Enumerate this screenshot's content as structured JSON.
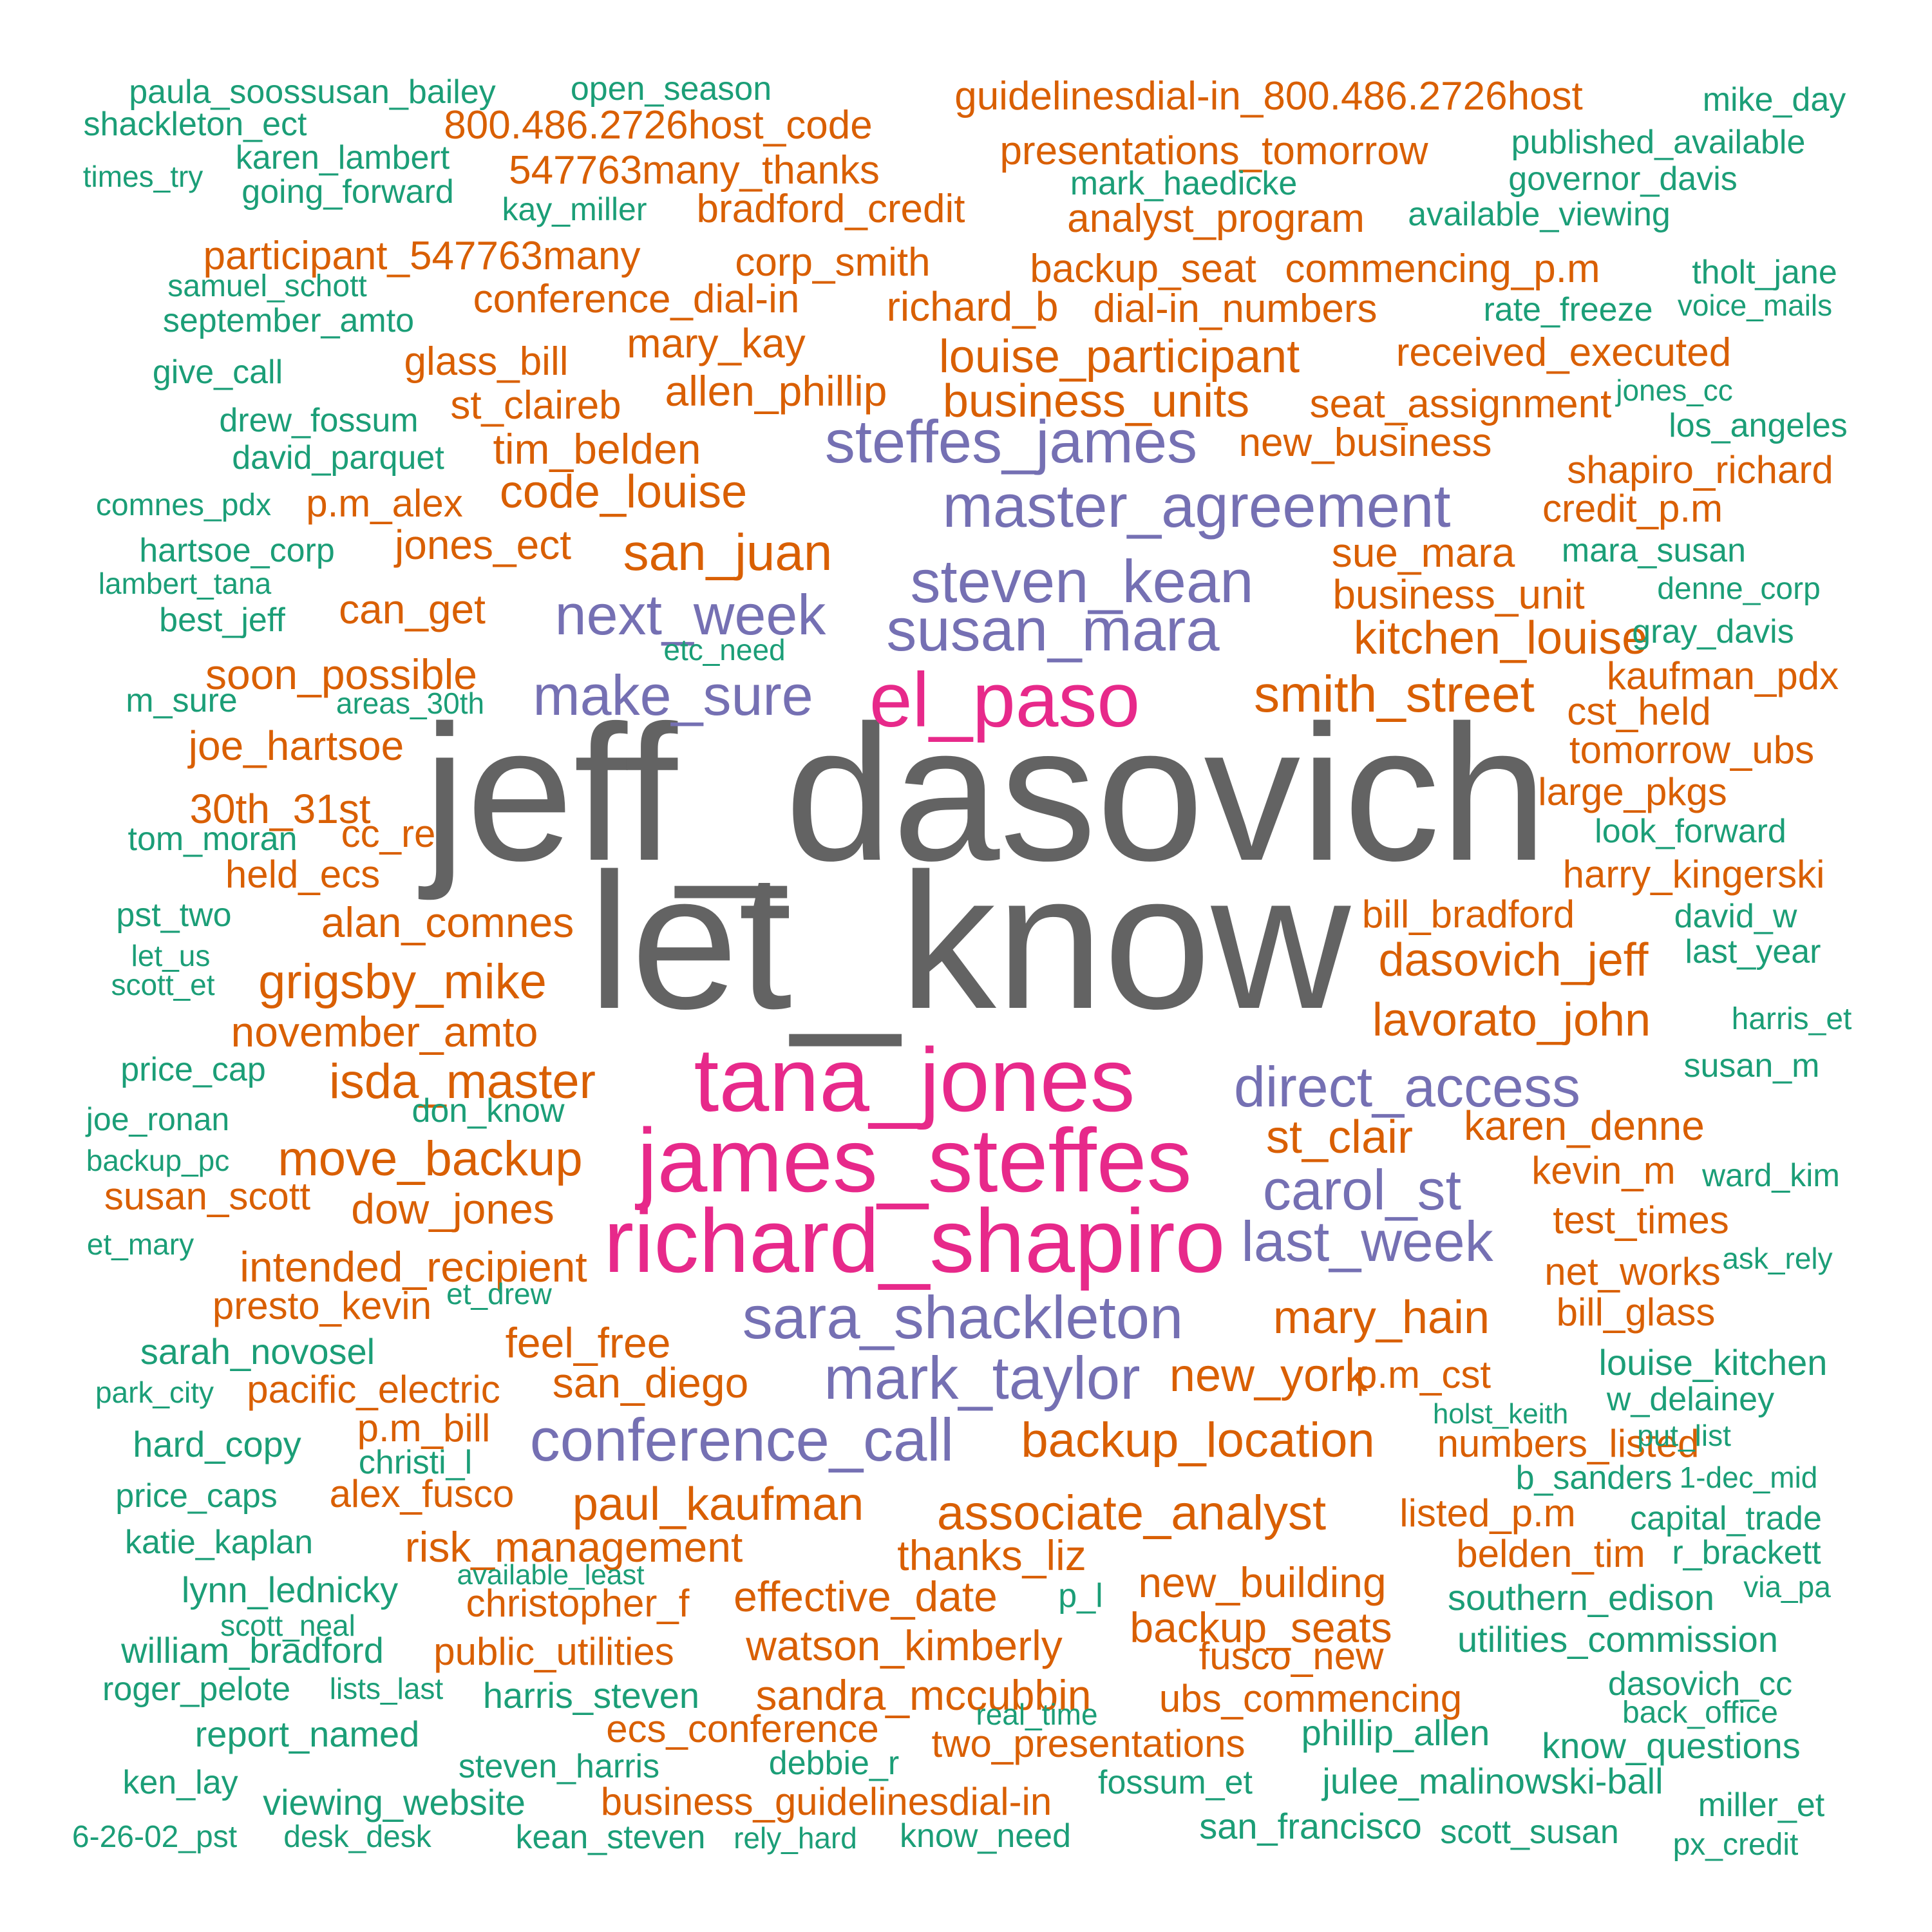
{
  "palette": {
    "gray": "#636363",
    "pink": "#E7298A",
    "purple": "#7570B3",
    "orange": "#D95F02",
    "green": "#1B9E77"
  },
  "words": [
    {
      "text": "jeff_dasovich",
      "size": 7,
      "color": "gray"
    },
    {
      "text": "let_know",
      "size": 7,
      "color": "gray"
    },
    {
      "text": "tana_jones",
      "size": 5,
      "color": "pink"
    },
    {
      "text": "james_steffes",
      "size": 5,
      "color": "pink"
    },
    {
      "text": "richard_shapiro",
      "size": 5,
      "color": "pink"
    },
    {
      "text": "el_paso",
      "size": 5,
      "color": "pink"
    },
    {
      "text": "master_agreement",
      "size": 4,
      "color": "purple"
    },
    {
      "text": "steven_kean",
      "size": 4,
      "color": "purple"
    },
    {
      "text": "susan_mara",
      "size": 4,
      "color": "purple"
    },
    {
      "text": "steffes_james",
      "size": 4,
      "color": "purple"
    },
    {
      "text": "next_week",
      "size": 4,
      "color": "purple"
    },
    {
      "text": "make_sure",
      "size": 4,
      "color": "purple"
    },
    {
      "text": "direct_access",
      "size": 4,
      "color": "purple"
    },
    {
      "text": "carol_st",
      "size": 4,
      "color": "purple"
    },
    {
      "text": "last_week",
      "size": 4,
      "color": "purple"
    },
    {
      "text": "sara_shackleton",
      "size": 4,
      "color": "purple"
    },
    {
      "text": "mark_taylor",
      "size": 4,
      "color": "purple"
    },
    {
      "text": "conference_call",
      "size": 4,
      "color": "purple"
    },
    {
      "text": "san_juan",
      "size": 3,
      "color": "orange"
    },
    {
      "text": "smith_street",
      "size": 3,
      "color": "orange"
    },
    {
      "text": "grigsby_mike",
      "size": 3,
      "color": "orange"
    },
    {
      "text": "isda_master",
      "size": 3,
      "color": "orange"
    },
    {
      "text": "move_backup",
      "size": 3,
      "color": "orange"
    },
    {
      "text": "backup_location",
      "size": 3,
      "color": "orange"
    },
    {
      "text": "associate_analyst",
      "size": 3,
      "color": "orange"
    },
    {
      "text": "paul_kaufman",
      "size": 3,
      "color": "orange"
    },
    {
      "text": "mary_hain",
      "size": 3,
      "color": "orange"
    },
    {
      "text": "new_york",
      "size": 3,
      "color": "orange"
    },
    {
      "text": "st_clair",
      "size": 3,
      "color": "orange"
    },
    {
      "text": "dasovich_jeff",
      "size": 3,
      "color": "orange"
    },
    {
      "text": "lavorato_john",
      "size": 3,
      "color": "orange"
    },
    {
      "text": "kitchen_louise",
      "size": 3,
      "color": "orange"
    },
    {
      "text": "louise_participant",
      "size": 3,
      "color": "orange"
    },
    {
      "text": "business_units",
      "size": 3,
      "color": "orange"
    },
    {
      "text": "code_louise",
      "size": 3,
      "color": "orange"
    },
    {
      "text": "november_amto",
      "size": 3,
      "color": "orange"
    },
    {
      "text": "dow_jones",
      "size": 3,
      "color": "orange"
    },
    {
      "text": "intended_recipient",
      "size": 3,
      "color": "orange"
    },
    {
      "text": "feel_free",
      "size": 3,
      "color": "orange"
    },
    {
      "text": "san_diego",
      "size": 3,
      "color": "orange"
    },
    {
      "text": "risk_management",
      "size": 3,
      "color": "orange"
    },
    {
      "text": "thanks_liz",
      "size": 3,
      "color": "orange"
    },
    {
      "text": "effective_date",
      "size": 3,
      "color": "orange"
    },
    {
      "text": "watson_kimberly",
      "size": 3,
      "color": "orange"
    },
    {
      "text": "sandra_mccubbin",
      "size": 3,
      "color": "orange"
    },
    {
      "text": "new_building",
      "size": 3,
      "color": "orange"
    },
    {
      "text": "backup_seats",
      "size": 3,
      "color": "orange"
    },
    {
      "text": "alan_comnes",
      "size": 3,
      "color": "orange"
    },
    {
      "text": "allen_phillip",
      "size": 3,
      "color": "orange"
    },
    {
      "text": "tim_belden",
      "size": 3,
      "color": "orange"
    },
    {
      "text": "soon_possible",
      "size": 3,
      "color": "orange"
    },
    {
      "text": "joe_hartsoe",
      "size": 3,
      "color": "orange"
    },
    {
      "text": "30th_31st",
      "size": 3,
      "color": "orange"
    },
    {
      "text": "can_get",
      "size": 3,
      "color": "orange"
    },
    {
      "text": "jones_ect",
      "size": 3,
      "color": "orange"
    },
    {
      "text": "mary_kay",
      "size": 3,
      "color": "orange"
    },
    {
      "text": "richard_b",
      "size": 3,
      "color": "orange"
    },
    {
      "text": "sue_mara",
      "size": 3,
      "color": "orange"
    },
    {
      "text": "business_unit",
      "size": 3,
      "color": "orange"
    },
    {
      "text": "karen_denne",
      "size": 3,
      "color": "orange"
    },
    {
      "text": "800.486.2726host_code",
      "size": 2,
      "color": "orange"
    },
    {
      "text": "guidelinesdial-in_800.486.2726host",
      "size": 2,
      "color": "orange"
    },
    {
      "text": "547763many_thanks",
      "size": 2,
      "color": "orange"
    },
    {
      "text": "bradford_credit",
      "size": 2,
      "color": "orange"
    },
    {
      "text": "presentations_tomorrow",
      "size": 2,
      "color": "orange"
    },
    {
      "text": "analyst_program",
      "size": 2,
      "color": "orange"
    },
    {
      "text": "participant_547763many",
      "size": 2,
      "color": "orange"
    },
    {
      "text": "corp_smith",
      "size": 2,
      "color": "orange"
    },
    {
      "text": "backup_seat",
      "size": 2,
      "color": "orange"
    },
    {
      "text": "commencing_p.m",
      "size": 2,
      "color": "orange"
    },
    {
      "text": "conference_dial-in",
      "size": 2,
      "color": "orange"
    },
    {
      "text": "dial-in_numbers",
      "size": 2,
      "color": "orange"
    },
    {
      "text": "glass_bill",
      "size": 2,
      "color": "orange"
    },
    {
      "text": "received_executed",
      "size": 2,
      "color": "orange"
    },
    {
      "text": "st_claireb",
      "size": 2,
      "color": "orange"
    },
    {
      "text": "seat_assignment",
      "size": 2,
      "color": "orange"
    },
    {
      "text": "new_business",
      "size": 2,
      "color": "orange"
    },
    {
      "text": "shapiro_richard",
      "size": 2,
      "color": "orange"
    },
    {
      "text": "p.m_alex",
      "size": 2,
      "color": "orange"
    },
    {
      "text": "credit_p.m",
      "size": 2,
      "color": "orange"
    },
    {
      "text": "kaufman_pdx",
      "size": 2,
      "color": "orange"
    },
    {
      "text": "cst_held",
      "size": 2,
      "color": "orange"
    },
    {
      "text": "tomorrow_ubs",
      "size": 2,
      "color": "orange"
    },
    {
      "text": "large_pkgs",
      "size": 2,
      "color": "orange"
    },
    {
      "text": "cc_re",
      "size": 2,
      "color": "orange"
    },
    {
      "text": "held_ecs",
      "size": 2,
      "color": "orange"
    },
    {
      "text": "harry_kingerski",
      "size": 2,
      "color": "orange"
    },
    {
      "text": "bill_bradford",
      "size": 2,
      "color": "orange"
    },
    {
      "text": "susan_scott",
      "size": 2,
      "color": "orange"
    },
    {
      "text": "kevin_m",
      "size": 2,
      "color": "orange"
    },
    {
      "text": "test_times",
      "size": 2,
      "color": "orange"
    },
    {
      "text": "net_works",
      "size": 2,
      "color": "orange"
    },
    {
      "text": "presto_kevin",
      "size": 2,
      "color": "orange"
    },
    {
      "text": "bill_glass",
      "size": 2,
      "color": "orange"
    },
    {
      "text": "pacific_electric",
      "size": 2,
      "color": "orange"
    },
    {
      "text": "p.m_cst",
      "size": 2,
      "color": "orange"
    },
    {
      "text": "p.m_bill",
      "size": 2,
      "color": "orange"
    },
    {
      "text": "numbers_listed",
      "size": 2,
      "color": "orange"
    },
    {
      "text": "alex_fusco",
      "size": 2,
      "color": "orange"
    },
    {
      "text": "listed_p.m",
      "size": 2,
      "color": "orange"
    },
    {
      "text": "belden_tim",
      "size": 2,
      "color": "orange"
    },
    {
      "text": "christopher_f",
      "size": 2,
      "color": "orange"
    },
    {
      "text": "public_utilities",
      "size": 2,
      "color": "orange"
    },
    {
      "text": "fusco_new",
      "size": 2,
      "color": "orange"
    },
    {
      "text": "ubs_commencing",
      "size": 2,
      "color": "orange"
    },
    {
      "text": "ecs_conference",
      "size": 2,
      "color": "orange"
    },
    {
      "text": "two_presentations",
      "size": 2,
      "color": "orange"
    },
    {
      "text": "business_guidelinesdial-in",
      "size": 2,
      "color": "orange"
    },
    {
      "text": "paula_soossusan_bailey",
      "size": 1,
      "color": "green"
    },
    {
      "text": "open_season",
      "size": 1,
      "color": "green"
    },
    {
      "text": "mike_day",
      "size": 1,
      "color": "green"
    },
    {
      "text": "shackleton_ect",
      "size": 1,
      "color": "green"
    },
    {
      "text": "published_available",
      "size": 1,
      "color": "green"
    },
    {
      "text": "karen_lambert",
      "size": 1,
      "color": "green"
    },
    {
      "text": "times_try",
      "size": 1,
      "color": "green"
    },
    {
      "text": "governor_davis",
      "size": 1,
      "color": "green"
    },
    {
      "text": "mark_haedicke",
      "size": 1,
      "color": "green"
    },
    {
      "text": "going_forward",
      "size": 1,
      "color": "green"
    },
    {
      "text": "kay_miller",
      "size": 1,
      "color": "green"
    },
    {
      "text": "available_viewing",
      "size": 1,
      "color": "green"
    },
    {
      "text": "tholt_jane",
      "size": 1,
      "color": "green"
    },
    {
      "text": "samuel_schott",
      "size": 1,
      "color": "green"
    },
    {
      "text": "rate_freeze",
      "size": 1,
      "color": "green"
    },
    {
      "text": "voice_mails",
      "size": 1,
      "color": "green"
    },
    {
      "text": "september_amto",
      "size": 1,
      "color": "green"
    },
    {
      "text": "give_call",
      "size": 1,
      "color": "green"
    },
    {
      "text": "jones_cc",
      "size": 1,
      "color": "green"
    },
    {
      "text": "drew_fossum",
      "size": 1,
      "color": "green"
    },
    {
      "text": "los_angeles",
      "size": 1,
      "color": "green"
    },
    {
      "text": "david_parquet",
      "size": 1,
      "color": "green"
    },
    {
      "text": "comnes_pdx",
      "size": 1,
      "color": "green"
    },
    {
      "text": "hartsoe_corp",
      "size": 1,
      "color": "green"
    },
    {
      "text": "mara_susan",
      "size": 1,
      "color": "green"
    },
    {
      "text": "lambert_tana",
      "size": 1,
      "color": "green"
    },
    {
      "text": "denne_corp",
      "size": 1,
      "color": "green"
    },
    {
      "text": "best_jeff",
      "size": 1,
      "color": "green"
    },
    {
      "text": "etc_need",
      "size": 1,
      "color": "green"
    },
    {
      "text": "gray_davis",
      "size": 1,
      "color": "green"
    },
    {
      "text": "m_sure",
      "size": 1,
      "color": "green"
    },
    {
      "text": "areas_30th",
      "size": 1,
      "color": "green"
    },
    {
      "text": "tom_moran",
      "size": 1,
      "color": "green"
    },
    {
      "text": "look_forward",
      "size": 1,
      "color": "green"
    },
    {
      "text": "pst_two",
      "size": 1,
      "color": "green"
    },
    {
      "text": "david_w",
      "size": 1,
      "color": "green"
    },
    {
      "text": "let_us",
      "size": 1,
      "color": "green"
    },
    {
      "text": "last_year",
      "size": 1,
      "color": "green"
    },
    {
      "text": "scott_et",
      "size": 1,
      "color": "green"
    },
    {
      "text": "harris_et",
      "size": 1,
      "color": "green"
    },
    {
      "text": "price_cap",
      "size": 1,
      "color": "green"
    },
    {
      "text": "susan_m",
      "size": 1,
      "color": "green"
    },
    {
      "text": "joe_ronan",
      "size": 1,
      "color": "green"
    },
    {
      "text": "don_know",
      "size": 1,
      "color": "green"
    },
    {
      "text": "backup_pc",
      "size": 1,
      "color": "green"
    },
    {
      "text": "ward_kim",
      "size": 1,
      "color": "green"
    },
    {
      "text": "et_mary",
      "size": 1,
      "color": "green"
    },
    {
      "text": "ask_rely",
      "size": 1,
      "color": "green"
    },
    {
      "text": "et_drew",
      "size": 1,
      "color": "green"
    },
    {
      "text": "sarah_novosel",
      "size": 1,
      "color": "green"
    },
    {
      "text": "louise_kitchen",
      "size": 1,
      "color": "green"
    },
    {
      "text": "park_city",
      "size": 1,
      "color": "green"
    },
    {
      "text": "holst_keith",
      "size": 1,
      "color": "green"
    },
    {
      "text": "w_delainey",
      "size": 1,
      "color": "green"
    },
    {
      "text": "hard_copy",
      "size": 1,
      "color": "green"
    },
    {
      "text": "put_list",
      "size": 1,
      "color": "green"
    },
    {
      "text": "christi_l",
      "size": 1,
      "color": "green"
    },
    {
      "text": "b_sanders",
      "size": 1,
      "color": "green"
    },
    {
      "text": "1-dec_mid",
      "size": 1,
      "color": "green"
    },
    {
      "text": "price_caps",
      "size": 1,
      "color": "green"
    },
    {
      "text": "capital_trade",
      "size": 1,
      "color": "green"
    },
    {
      "text": "katie_kaplan",
      "size": 1,
      "color": "green"
    },
    {
      "text": "r_brackett",
      "size": 1,
      "color": "green"
    },
    {
      "text": "available_least",
      "size": 1,
      "color": "green"
    },
    {
      "text": "lynn_lednicky",
      "size": 1,
      "color": "green"
    },
    {
      "text": "p_l",
      "size": 1,
      "color": "green"
    },
    {
      "text": "southern_edison",
      "size": 1,
      "color": "green"
    },
    {
      "text": "via_pa",
      "size": 1,
      "color": "green"
    },
    {
      "text": "scott_neal",
      "size": 1,
      "color": "green"
    },
    {
      "text": "william_bradford",
      "size": 1,
      "color": "green"
    },
    {
      "text": "utilities_commission",
      "size": 1,
      "color": "green"
    },
    {
      "text": "roger_pelote",
      "size": 1,
      "color": "green"
    },
    {
      "text": "lists_last",
      "size": 1,
      "color": "green"
    },
    {
      "text": "harris_steven",
      "size": 1,
      "color": "green"
    },
    {
      "text": "dasovich_cc",
      "size": 1,
      "color": "green"
    },
    {
      "text": "real_time",
      "size": 1,
      "color": "green"
    },
    {
      "text": "back_office",
      "size": 1,
      "color": "green"
    },
    {
      "text": "report_named",
      "size": 1,
      "color": "green"
    },
    {
      "text": "phillip_allen",
      "size": 1,
      "color": "green"
    },
    {
      "text": "know_questions",
      "size": 1,
      "color": "green"
    },
    {
      "text": "steven_harris",
      "size": 1,
      "color": "green"
    },
    {
      "text": "debbie_r",
      "size": 1,
      "color": "green"
    },
    {
      "text": "ken_lay",
      "size": 1,
      "color": "green"
    },
    {
      "text": "fossum_et",
      "size": 1,
      "color": "green"
    },
    {
      "text": "julee_malinowski-ball",
      "size": 1,
      "color": "green"
    },
    {
      "text": "viewing_website",
      "size": 1,
      "color": "green"
    },
    {
      "text": "miller_et",
      "size": 1,
      "color": "green"
    },
    {
      "text": "san_francisco",
      "size": 1,
      "color": "green"
    },
    {
      "text": "6-26-02_pst",
      "size": 1,
      "color": "green"
    },
    {
      "text": "desk_desk",
      "size": 1,
      "color": "green"
    },
    {
      "text": "kean_steven",
      "size": 1,
      "color": "green"
    },
    {
      "text": "rely_hard",
      "size": 1,
      "color": "green"
    },
    {
      "text": "know_need",
      "size": 1,
      "color": "green"
    },
    {
      "text": "scott_susan",
      "size": 1,
      "color": "green"
    },
    {
      "text": "px_credit",
      "size": 1,
      "color": "green"
    }
  ]
}
